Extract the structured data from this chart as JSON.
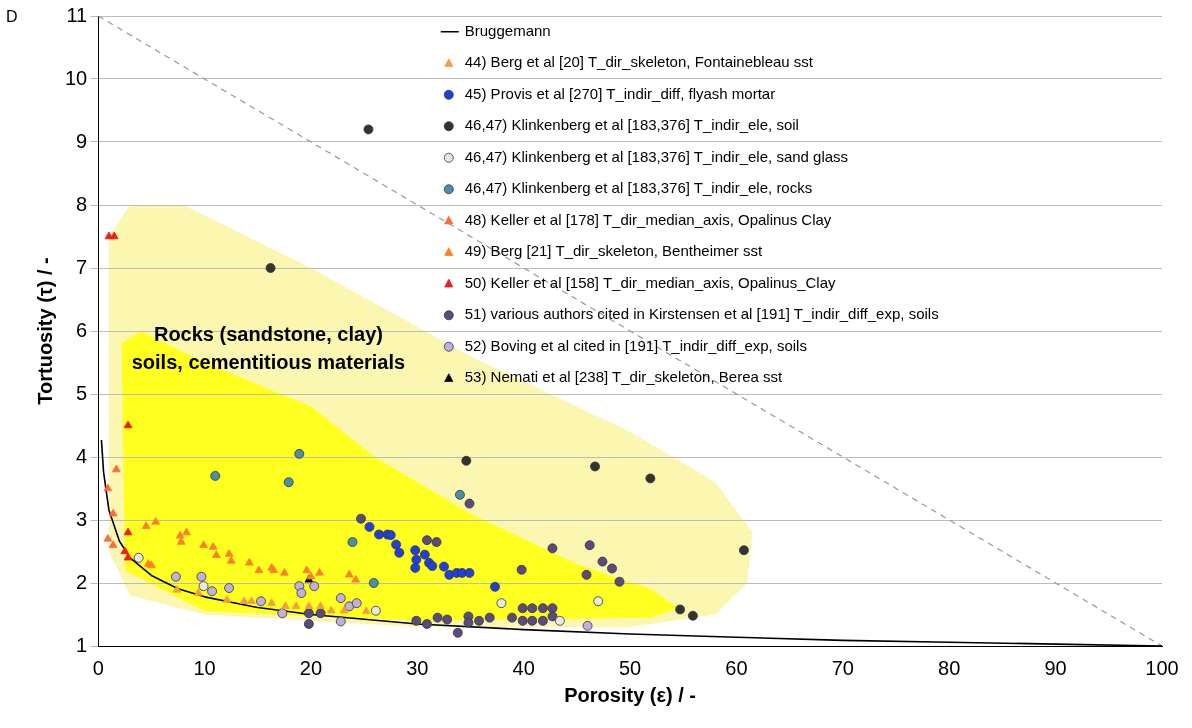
{
  "chart_data": {
    "type": "scatter",
    "xlabel": "Porosity (ε) / -",
    "ylabel": "Tortuosity (τ) / -",
    "xlim": [
      0,
      100
    ],
    "xticks": [
      0,
      10,
      20,
      30,
      40,
      50,
      60,
      70,
      80,
      90,
      100
    ],
    "ylim": [
      1,
      11
    ],
    "yticks": [
      1,
      2,
      3,
      4,
      5,
      6,
      7,
      8,
      9,
      10,
      11
    ],
    "grid": "y",
    "legend": "top right",
    "annotations": [
      "D",
      "Rocks (sandstone, clay)\nsoils, cementitious materials"
    ],
    "series": [
      {
        "name": "Bruggemann",
        "type": "line",
        "color": "#000000",
        "marker": "none",
        "line_style": "solid",
        "x": [
          0.3,
          0.5,
          1,
          2,
          3,
          5,
          7.5,
          10,
          15,
          20,
          30,
          40,
          50,
          60,
          70,
          80,
          90,
          100
        ],
        "values": [
          4.27,
          3.76,
          3.16,
          2.66,
          2.4,
          2.12,
          1.91,
          1.78,
          1.61,
          1.5,
          1.35,
          1.26,
          1.19,
          1.14,
          1.09,
          1.06,
          1.03,
          1
        ]
      },
      {
        "type": "line",
        "color": "#999999",
        "marker": "none",
        "line_style": "dashed",
        "x": [
          0,
          100
        ],
        "values": [
          11,
          1
        ]
      },
      {
        "name": "44) Berg et al [20] T_dir_skeleton, Fontainebleau sst",
        "color": "#f0a040",
        "marker": "triangle",
        "x": [
          7.4,
          9.4,
          12.1,
          13.7,
          14.4,
          16.3,
          17.6,
          18.6,
          19.8,
          20.9,
          21.9,
          23.1,
          25.2
        ],
        "values": [
          1.89,
          1.84,
          1.73,
          1.71,
          1.71,
          1.68,
          1.63,
          1.63,
          1.63,
          1.63,
          1.56,
          1.56,
          1.55
        ]
      },
      {
        "name": "45) Provis et al [270] T_indir_diff, flyash mortar",
        "color": "#1f3fe0",
        "marker": "circle",
        "x": [
          25.5,
          26.4,
          27.2,
          27.5,
          28.0,
          28.3,
          29.8,
          29.9,
          29.8,
          30.7,
          31.1,
          31.4,
          32.5,
          33.0,
          33.7,
          34.2,
          34.9,
          37.3
        ],
        "values": [
          2.89,
          2.77,
          2.77,
          2.76,
          2.61,
          2.48,
          2.52,
          2.37,
          2.24,
          2.45,
          2.32,
          2.27,
          2.26,
          2.13,
          2.16,
          2.16,
          2.16,
          1.94
        ]
      },
      {
        "name": "46,47) Klinkenberg et al [183,376] T_indir_ele, soil",
        "color": "#333333",
        "marker": "circle",
        "x": [
          25.4,
          16.2,
          34.6,
          46.7,
          51.9,
          60.7,
          54.7,
          55.9
        ],
        "values": [
          9.2,
          7.0,
          3.94,
          3.85,
          3.66,
          2.52,
          1.58,
          1.48
        ]
      },
      {
        "name": "46,47) Klinkenberg et al [183,376] T_indir_ele, sand glass",
        "color": "#e8e8e8",
        "marker": "circle",
        "x": [
          3.8,
          9.9,
          26.1,
          37.9,
          47.0,
          43.4
        ],
        "values": [
          2.4,
          1.95,
          1.56,
          1.68,
          1.71,
          1.4
        ]
      },
      {
        "name": "46,47) Klinkenberg et al [183,376] T_indir_ele, rocks",
        "color": "#4a90a8",
        "marker": "circle",
        "x": [
          11.0,
          17.9,
          18.9,
          23.9,
          25.9,
          34.0
        ],
        "values": [
          3.7,
          3.6,
          4.05,
          2.65,
          2.0,
          3.4
        ]
      },
      {
        "name": "48) Keller et al [178] T_dir_median_axis, Opalinus Clay",
        "color": "#ff6a3a",
        "marker": "triangle",
        "x": [
          0.9,
          1.4,
          0.9,
          1.4,
          1.7
        ],
        "values": [
          3.5,
          3.1,
          2.7,
          2.6,
          3.8
        ]
      },
      {
        "name": "49) Berg [21] T_dir_skeleton, Bentheimer sst",
        "color": "#ff7f27",
        "marker": "triangle",
        "x": [
          4.5,
          5.4,
          4.7,
          5.0,
          7.7,
          8.3,
          7.8,
          9.9,
          10.8,
          11.1,
          12.3,
          12.5,
          14.2,
          15.1,
          16.3,
          16.5,
          17.5,
          19.6,
          20,
          20.8,
          23.6,
          24.2
        ],
        "values": [
          2.9,
          2.97,
          2.3,
          2.28,
          2.75,
          2.8,
          2.65,
          2.6,
          2.57,
          2.44,
          2.46,
          2.35,
          2.32,
          2.2,
          2.24,
          2.2,
          2.16,
          2.2,
          2.1,
          2.16,
          2.13,
          2.05
        ]
      },
      {
        "name": "50) Keller et al [158] T_dir_median_axis, Opalinus_Clay",
        "color": "#ee1c1c",
        "marker": "triangle",
        "x": [
          1.0,
          1.5,
          2.8,
          2.8,
          2.5,
          2.8
        ],
        "values": [
          7.5,
          7.5,
          4.5,
          2.8,
          2.5,
          2.4
        ]
      },
      {
        "name": "51) various authors cited in Kirstensen et al [191] T_indir_diff_exp, soils",
        "color": "#5a4a80",
        "marker": "circle",
        "x": [
          34.9,
          30.9,
          31.8,
          42.7,
          39.8,
          46.2,
          47.4,
          48.3,
          49.0,
          45.9,
          24.7,
          29.9,
          30.9,
          31.9,
          32.8,
          33.8,
          34.8,
          34.8,
          35.8,
          36.8,
          38.9,
          39.9,
          39.9,
          40.8,
          40.8,
          41.8,
          41.8,
          42.7,
          42.7,
          19.8,
          19.8,
          20.9
        ],
        "values": [
          3.26,
          2.68,
          2.65,
          2.55,
          2.21,
          2.6,
          2.34,
          2.23,
          2.02,
          2.13,
          3.02,
          1.4,
          1.35,
          1.45,
          1.42,
          1.21,
          1.47,
          1.37,
          1.4,
          1.45,
          1.45,
          1.6,
          1.4,
          1.6,
          1.4,
          1.6,
          1.4,
          1.6,
          1.47,
          1.52,
          1.35,
          1.52
        ]
      },
      {
        "name": "52) Boving et al cited in [191] T_indir_diff_exp, soils",
        "color": "#c0b0e0",
        "marker": "circle",
        "x": [
          7.3,
          9.7,
          10.7,
          12.3,
          15.3,
          17.3,
          18.9,
          19.1,
          20.3,
          22.8,
          22.8,
          23.6,
          24.3,
          46.0
        ],
        "values": [
          2.1,
          2.1,
          1.87,
          1.92,
          1.71,
          1.52,
          1.95,
          1.84,
          1.95,
          1.76,
          1.39,
          1.63,
          1.68,
          1.32
        ]
      },
      {
        "name": "53) Nemati et al [238] T_dir_skeleton, Berea sst",
        "color": "#000000",
        "marker": "triangle",
        "x": [
          19.8
        ],
        "values": [
          2.05
        ]
      }
    ]
  }
}
